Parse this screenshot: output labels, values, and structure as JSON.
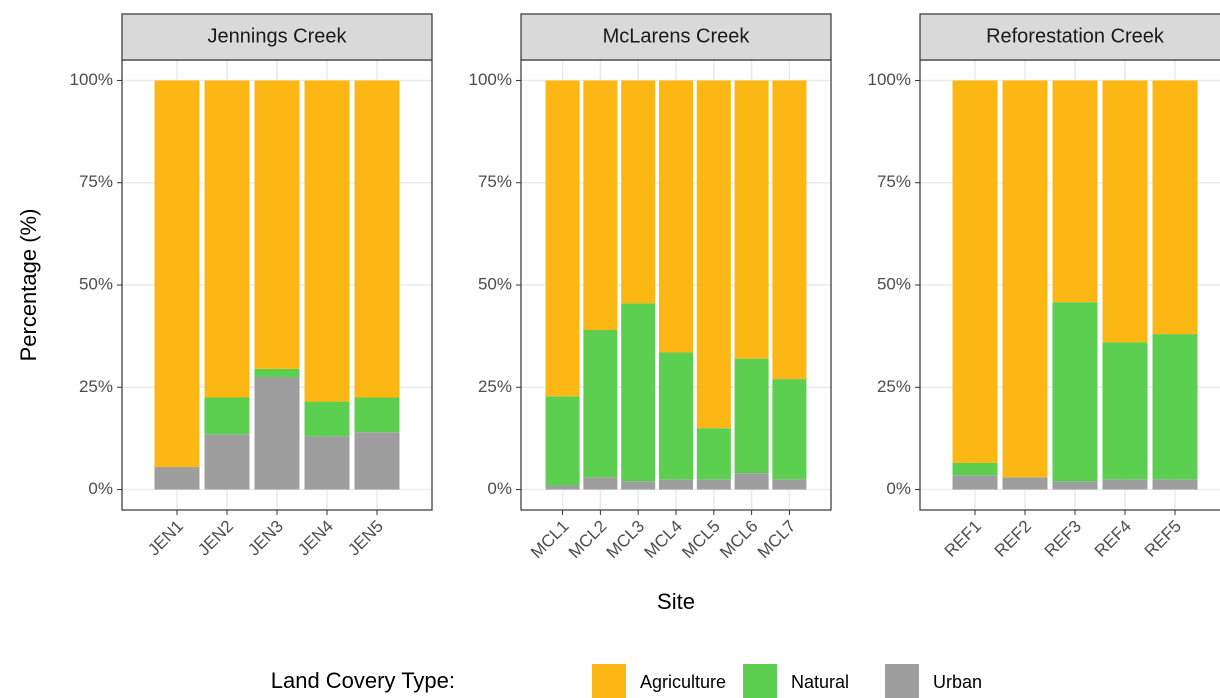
{
  "axis_labels": {
    "x": "Site",
    "y": "Percentage (%)"
  },
  "legend": {
    "title": "Land Covery Type:",
    "position": "bottom"
  },
  "chart_data": [
    {
      "type": "stacked-bar",
      "title": "Jennings Creek",
      "categories": [
        "JEN1",
        "JEN2",
        "JEN3",
        "JEN4",
        "JEN5"
      ],
      "series": [
        {
          "name": "Agriculture",
          "color": "#fdb714",
          "values": [
            94.5,
            77.5,
            70.5,
            78.5,
            77.5
          ]
        },
        {
          "name": "Natural",
          "color": "#5dcf50",
          "values": [
            0,
            9,
            2,
            8.5,
            8.5
          ]
        },
        {
          "name": "Urban",
          "color": "#9e9e9e",
          "values": [
            5.5,
            13.5,
            27.5,
            13,
            14
          ]
        }
      ],
      "ylim": [
        -5,
        105
      ],
      "yticks": [
        {
          "value": 0,
          "label": "0%"
        },
        {
          "value": 25,
          "label": "25%"
        },
        {
          "value": 50,
          "label": "50%"
        },
        {
          "value": 75,
          "label": "75%"
        },
        {
          "value": 100,
          "label": "100%"
        }
      ],
      "grid": true
    },
    {
      "type": "stacked-bar",
      "title": "McLarens Creek",
      "categories": [
        "MCL1",
        "MCL2",
        "MCL3",
        "MCL4",
        "MCL5",
        "MCL6",
        "MCL7"
      ],
      "series": [
        {
          "name": "Agriculture",
          "color": "#fdb714",
          "values": [
            77.2,
            61,
            54.5,
            66.5,
            85,
            68,
            73
          ]
        },
        {
          "name": "Natural",
          "color": "#5dcf50",
          "values": [
            21.8,
            36,
            43.5,
            31,
            12.5,
            28,
            24.5
          ]
        },
        {
          "name": "Urban",
          "color": "#9e9e9e",
          "values": [
            1,
            3,
            2,
            2.5,
            2.5,
            4,
            2.5
          ]
        }
      ],
      "ylim": [
        -5,
        105
      ],
      "yticks": [
        {
          "value": 0,
          "label": "0%"
        },
        {
          "value": 25,
          "label": "25%"
        },
        {
          "value": 50,
          "label": "50%"
        },
        {
          "value": 75,
          "label": "75%"
        },
        {
          "value": 100,
          "label": "100%"
        }
      ],
      "grid": true
    },
    {
      "type": "stacked-bar",
      "title": "Reforestation Creek",
      "categories": [
        "REF1",
        "REF2",
        "REF3",
        "REF4",
        "REF5"
      ],
      "series": [
        {
          "name": "Agriculture",
          "color": "#fdb714",
          "values": [
            93.5,
            97,
            54.2,
            64,
            62
          ]
        },
        {
          "name": "Natural",
          "color": "#5dcf50",
          "values": [
            3,
            0,
            43.8,
            33.5,
            35.5
          ]
        },
        {
          "name": "Urban",
          "color": "#9e9e9e",
          "values": [
            3.5,
            3,
            2,
            2.5,
            2.5
          ]
        }
      ],
      "ylim": [
        -5,
        105
      ],
      "yticks": [
        {
          "value": 0,
          "label": "0%"
        },
        {
          "value": 25,
          "label": "25%"
        },
        {
          "value": 50,
          "label": "50%"
        },
        {
          "value": 75,
          "label": "75%"
        },
        {
          "value": 100,
          "label": "100%"
        }
      ],
      "grid": true
    }
  ]
}
